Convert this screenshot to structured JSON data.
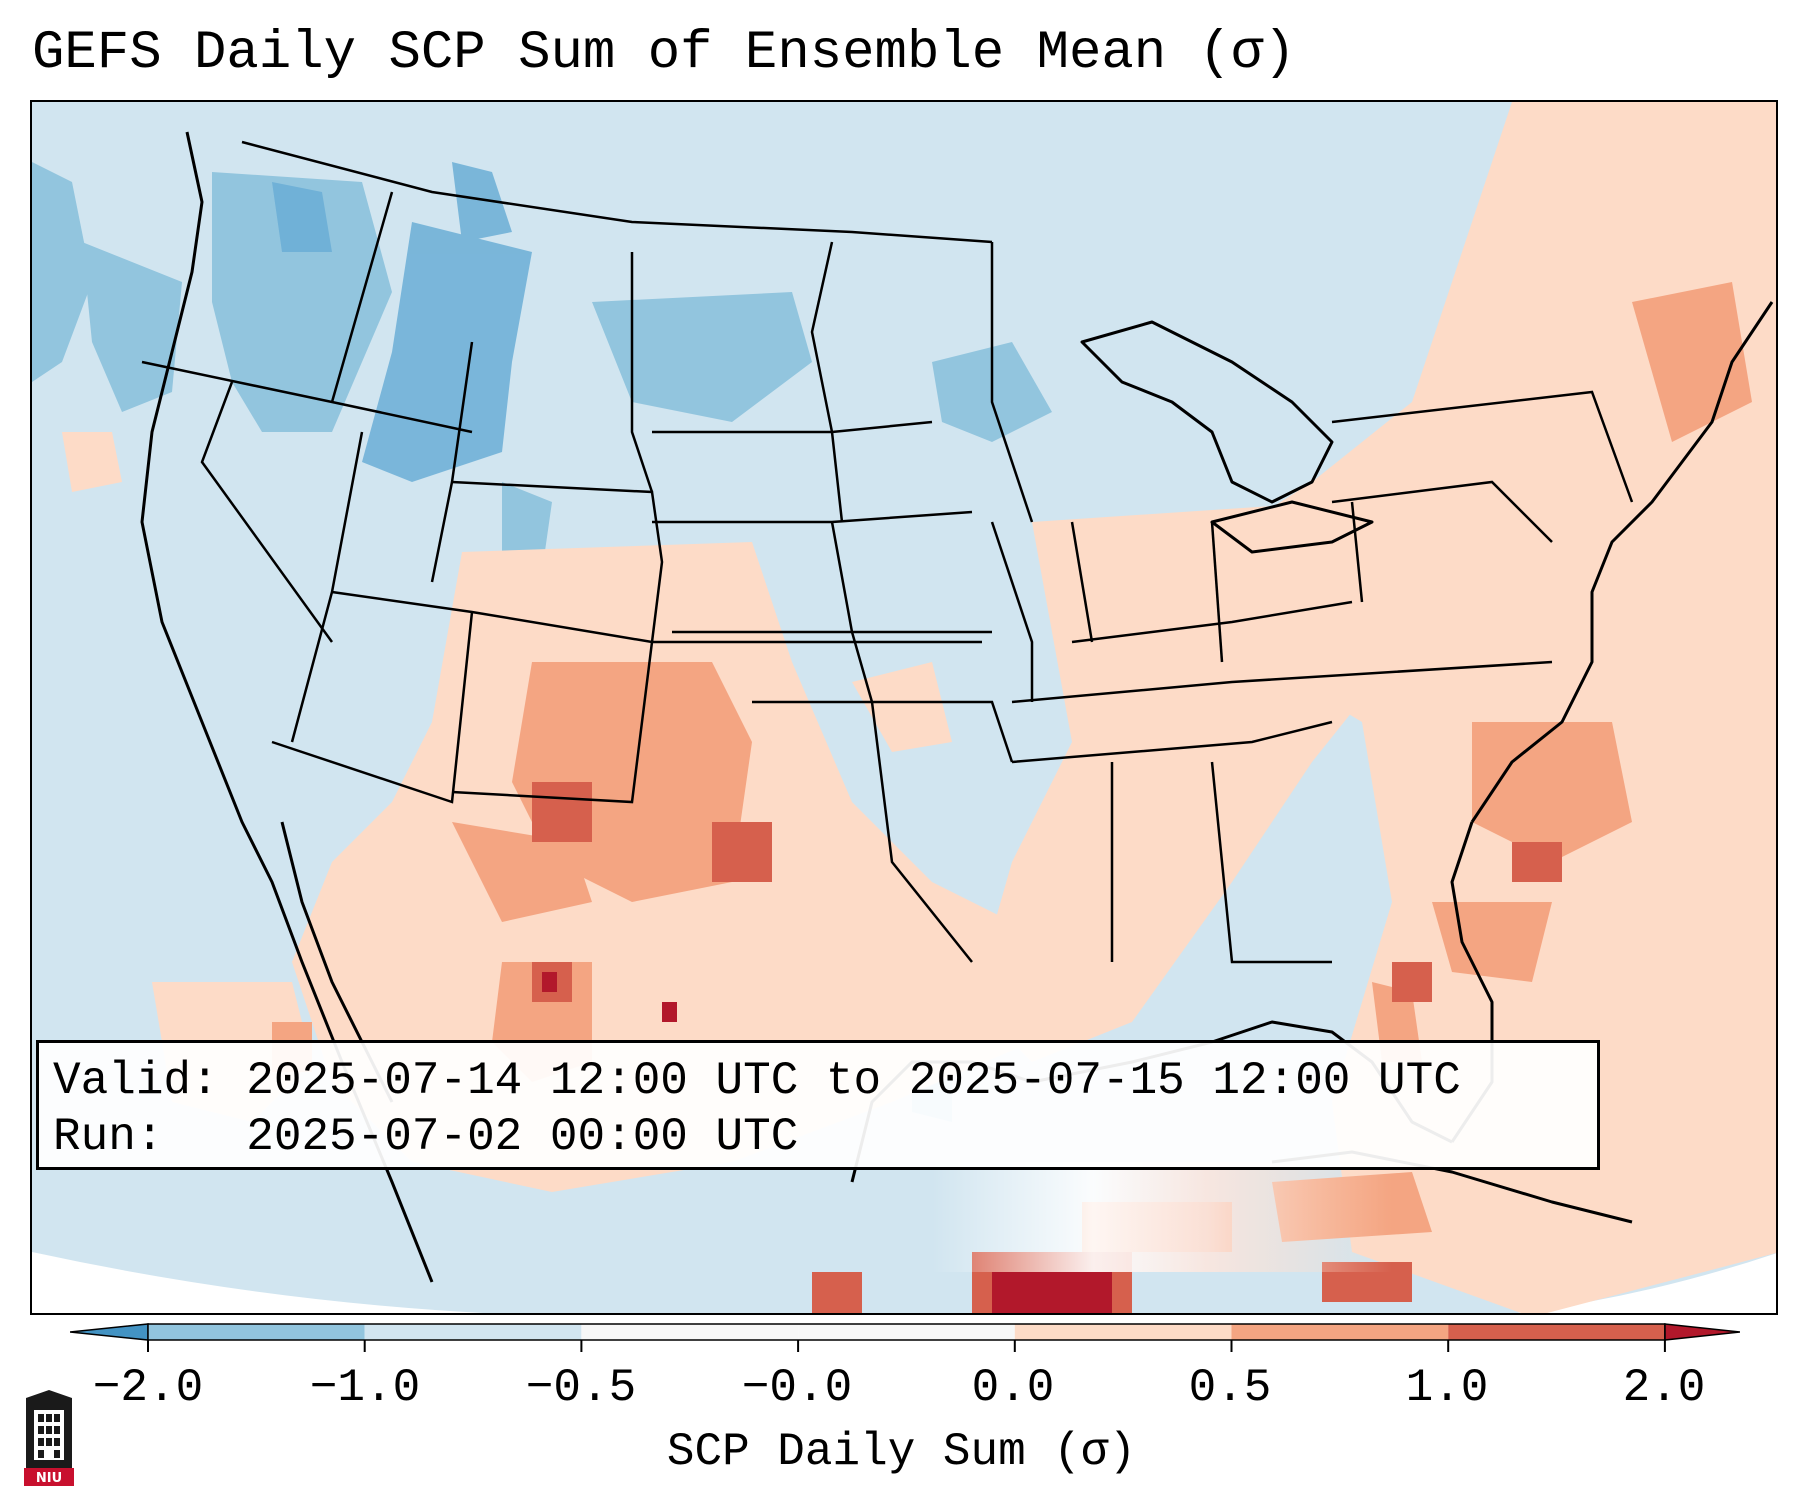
{
  "title": "GEFS Daily SCP Sum of Ensemble Mean (σ)",
  "info": {
    "valid": "Valid: 2025-07-14 12:00 UTC to 2025-07-15 12:00 UTC",
    "run": "Run:   2025-07-02 00:00 UTC"
  },
  "colorbar": {
    "label": "SCP Daily Sum (σ)",
    "ticks": [
      "−2.0",
      "−1.0",
      "−0.5",
      "−0.0",
      "0.0",
      "0.5",
      "1.0",
      "2.0"
    ],
    "colors": [
      "#4393c3",
      "#92c5de",
      "#d1e5f0",
      "#f7f7f7",
      "#f7f7f7",
      "#fddbc7",
      "#f4a582",
      "#d6604d",
      "#b2182b"
    ]
  },
  "map": {
    "ocean_color": "#d1e5f0",
    "land_color": "#d1e5f0",
    "border_color": "#000000"
  },
  "logo": {
    "text": "NIU"
  }
}
